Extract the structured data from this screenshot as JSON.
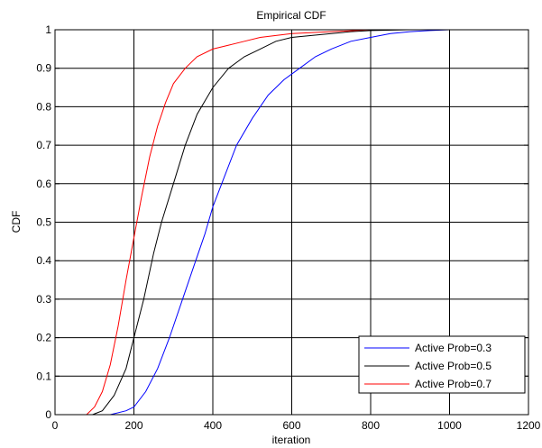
{
  "chart_data": {
    "type": "line",
    "title": "Empirical CDF",
    "xlabel": "iteration",
    "ylabel": "CDF",
    "xlim": [
      0,
      1200
    ],
    "ylim": [
      0,
      1
    ],
    "xticks": [
      0,
      200,
      400,
      600,
      800,
      1000,
      1200
    ],
    "yticks": [
      0,
      0.1,
      0.2,
      0.3,
      0.4,
      0.5,
      0.6,
      0.7,
      0.8,
      0.9,
      1
    ],
    "ytick_labels": [
      "0",
      "0.1",
      "0.2",
      "0.3",
      "0.4",
      "0.5",
      "0.6",
      "0.7",
      "0.8",
      "0.9",
      "1"
    ],
    "grid": true,
    "legend_position": "bottom-right",
    "series": [
      {
        "name": "Active Prob=0.3",
        "color": "#0000ff",
        "x": [
          140,
          180,
          200,
          230,
          260,
          290,
          320,
          350,
          380,
          400,
          430,
          460,
          500,
          540,
          580,
          620,
          660,
          700,
          750,
          800,
          850,
          900,
          950,
          1000,
          1200
        ],
        "y": [
          0,
          0.01,
          0.02,
          0.06,
          0.12,
          0.2,
          0.29,
          0.38,
          0.47,
          0.54,
          0.62,
          0.7,
          0.77,
          0.83,
          0.87,
          0.9,
          0.93,
          0.95,
          0.97,
          0.98,
          0.99,
          0.995,
          0.998,
          1,
          1
        ]
      },
      {
        "name": "Active Prob=0.5",
        "color": "#000000",
        "x": [
          95,
          120,
          150,
          180,
          200,
          225,
          250,
          270,
          300,
          330,
          360,
          400,
          440,
          480,
          520,
          560,
          600,
          650,
          700,
          750,
          800,
          900,
          1200
        ],
        "y": [
          0,
          0.01,
          0.05,
          0.12,
          0.2,
          0.3,
          0.42,
          0.5,
          0.6,
          0.7,
          0.78,
          0.85,
          0.9,
          0.93,
          0.95,
          0.97,
          0.98,
          0.985,
          0.99,
          0.995,
          0.998,
          1,
          1
        ]
      },
      {
        "name": "Active Prob=0.7",
        "color": "#ff0000",
        "x": [
          80,
          100,
          120,
          140,
          160,
          180,
          200,
          220,
          240,
          260,
          280,
          300,
          330,
          360,
          400,
          440,
          480,
          520,
          560,
          600,
          700,
          800,
          1200
        ],
        "y": [
          0,
          0.02,
          0.06,
          0.13,
          0.23,
          0.35,
          0.46,
          0.57,
          0.67,
          0.75,
          0.81,
          0.86,
          0.9,
          0.93,
          0.95,
          0.96,
          0.97,
          0.98,
          0.985,
          0.99,
          0.995,
          1,
          1
        ]
      }
    ]
  }
}
